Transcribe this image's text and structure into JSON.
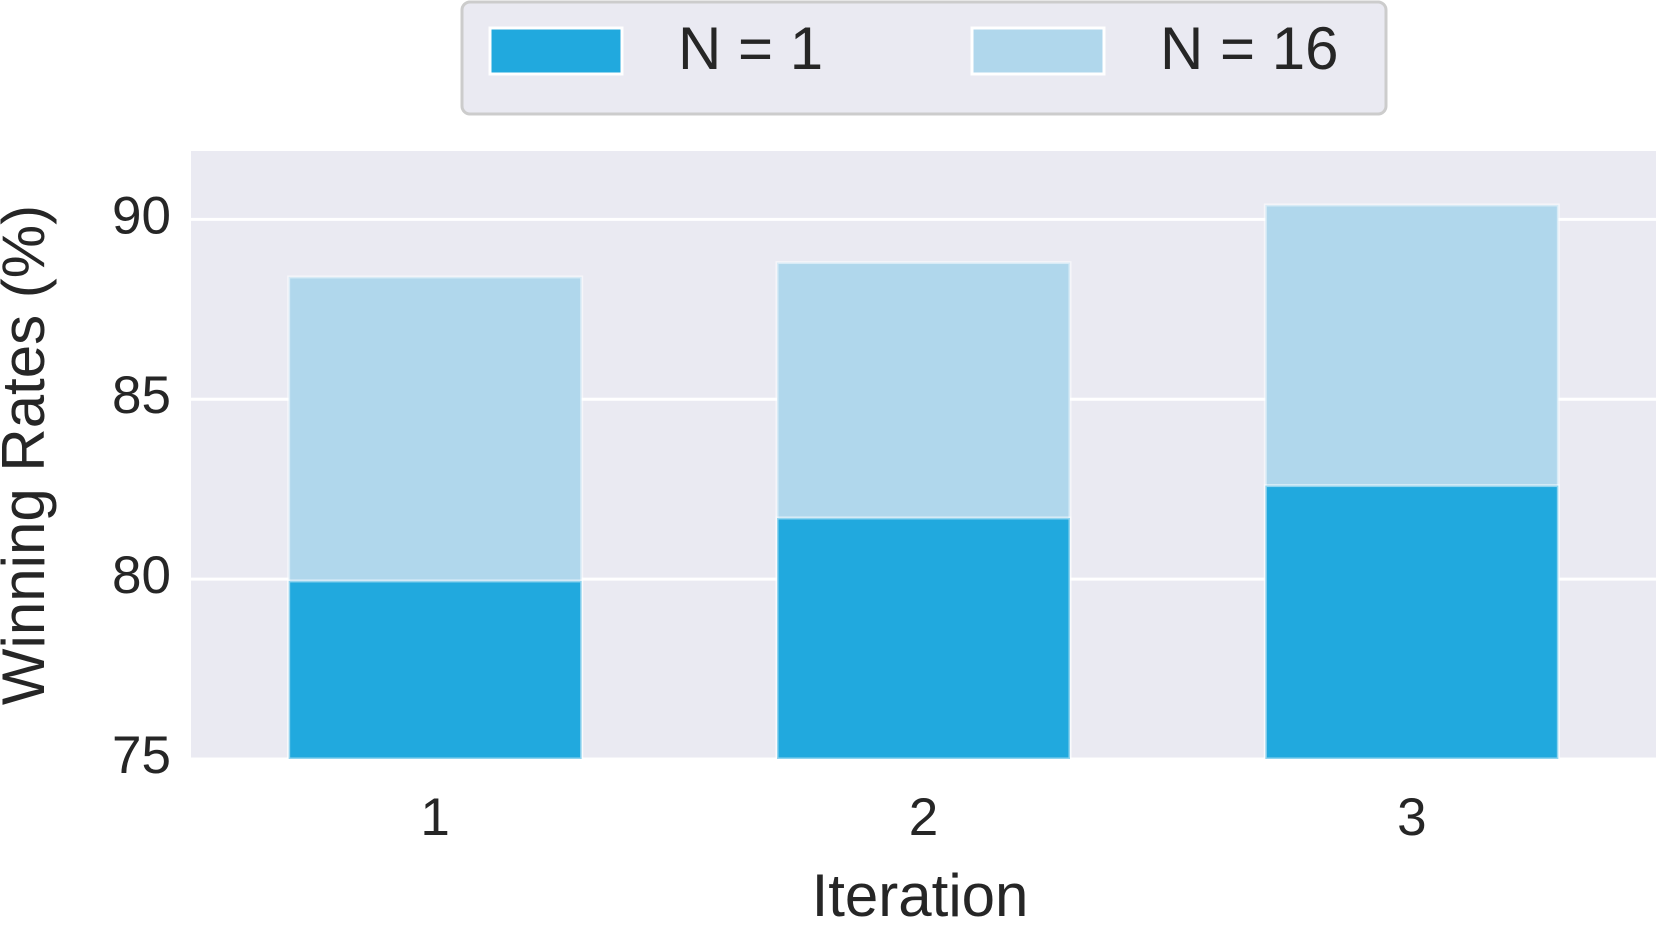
{
  "chart_data": {
    "type": "bar",
    "categories": [
      "1",
      "2",
      "3"
    ],
    "series": [
      {
        "name": "N = 16",
        "color": "#b0d7ec",
        "values": [
          88.4,
          88.8,
          90.4
        ]
      },
      {
        "name": "N = 1",
        "color": "#21a9de",
        "values": [
          79.95,
          81.7,
          82.6
        ]
      }
    ],
    "x_label": "Iteration",
    "y_label": "Winning Rates (%)",
    "ylim": [
      75,
      91.9
    ],
    "yticks": [
      75,
      80,
      85,
      90
    ],
    "grid": true
  }
}
